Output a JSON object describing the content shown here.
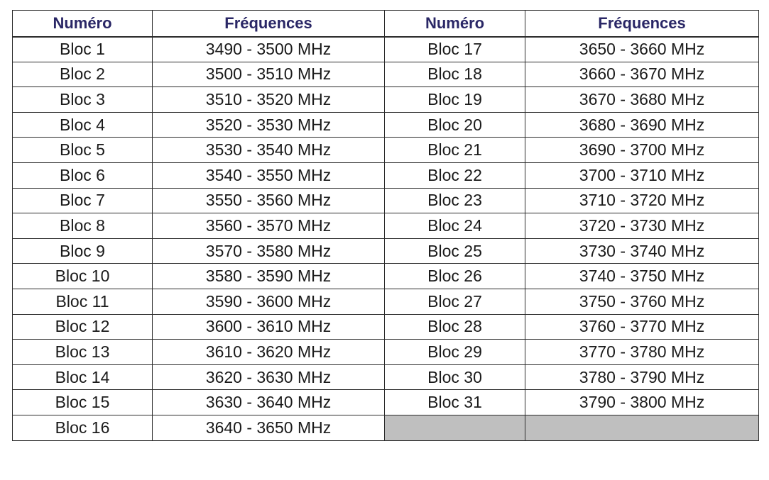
{
  "headers": [
    "Numéro",
    "Fréquences",
    "Numéro",
    "Fréquences"
  ],
  "rows": [
    [
      "Bloc 1",
      "3490 - 3500 MHz",
      "Bloc 17",
      "3650 - 3660 MHz"
    ],
    [
      "Bloc 2",
      "3500 - 3510 MHz",
      "Bloc 18",
      "3660 - 3670 MHz"
    ],
    [
      "Bloc 3",
      "3510 - 3520 MHz",
      "Bloc 19",
      "3670 - 3680 MHz"
    ],
    [
      "Bloc 4",
      "3520 - 3530 MHz",
      "Bloc 20",
      "3680 - 3690 MHz"
    ],
    [
      "Bloc 5",
      "3530 - 3540 MHz",
      "Bloc 21",
      "3690 - 3700 MHz"
    ],
    [
      "Bloc 6",
      "3540 - 3550 MHz",
      "Bloc 22",
      "3700 - 3710 MHz"
    ],
    [
      "Bloc 7",
      "3550 - 3560 MHz",
      "Bloc 23",
      "3710 - 3720 MHz"
    ],
    [
      "Bloc 8",
      "3560 - 3570 MHz",
      "Bloc 24",
      "3720 - 3730 MHz"
    ],
    [
      "Bloc 9",
      "3570 - 3580 MHz",
      "Bloc 25",
      "3730 - 3740 MHz"
    ],
    [
      "Bloc 10",
      "3580 - 3590 MHz",
      "Bloc 26",
      "3740 - 3750 MHz"
    ],
    [
      "Bloc 11",
      "3590 - 3600 MHz",
      "Bloc 27",
      "3750 - 3760 MHz"
    ],
    [
      "Bloc 12",
      "3600 - 3610 MHz",
      "Bloc 28",
      "3760 - 3770 MHz"
    ],
    [
      "Bloc 13",
      "3610 - 3620 MHz",
      "Bloc 29",
      "3770 - 3780 MHz"
    ],
    [
      "Bloc 14",
      "3620 - 3630 MHz",
      "Bloc 30",
      "3780 - 3790 MHz"
    ],
    [
      "Bloc 15",
      "3630 - 3640 MHz",
      "Bloc 31",
      "3790 - 3800 MHz"
    ],
    [
      "Bloc 16",
      "3640 - 3650 MHz",
      "",
      ""
    ]
  ],
  "colors": {
    "header_text": "#2a2766",
    "border": "#2b2b2b",
    "empty_cell": "#bfbfbf"
  }
}
